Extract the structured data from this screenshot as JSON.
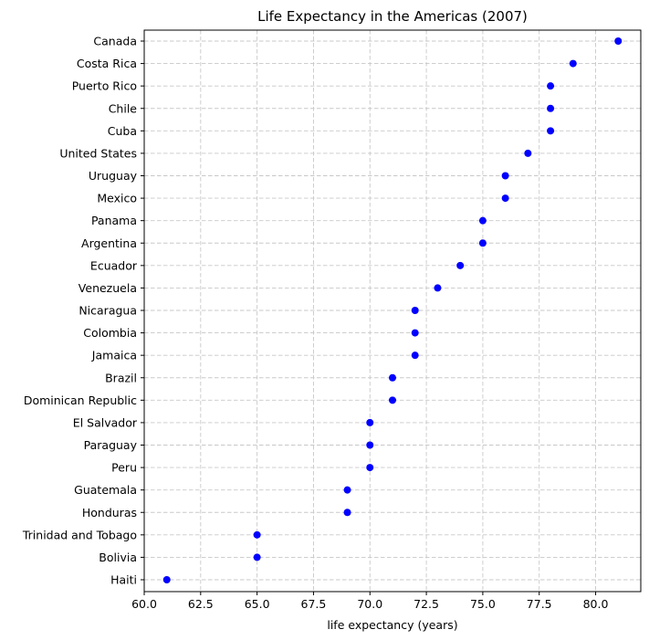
{
  "chart_data": {
    "type": "scatter",
    "title": "Life Expectancy in the Americas (2007)",
    "xlabel": "life expectancy (years)",
    "ylabel": "",
    "xlim": [
      60.0,
      82.0
    ],
    "xticks": [
      "60.0",
      "62.5",
      "65.0",
      "67.5",
      "70.0",
      "72.5",
      "75.0",
      "77.5",
      "80.0"
    ],
    "grid": true,
    "marker_color": "#0000ff",
    "categories": [
      "Canada",
      "Costa Rica",
      "Puerto Rico",
      "Chile",
      "Cuba",
      "United States",
      "Uruguay",
      "Mexico",
      "Panama",
      "Argentina",
      "Ecuador",
      "Venezuela",
      "Nicaragua",
      "Colombia",
      "Jamaica",
      "Brazil",
      "Dominican Republic",
      "El Salvador",
      "Paraguay",
      "Peru",
      "Guatemala",
      "Honduras",
      "Trinidad and Tobago",
      "Bolivia",
      "Haiti"
    ],
    "values": [
      81,
      79,
      78,
      78,
      78,
      77,
      76,
      76,
      75,
      75,
      74,
      73,
      72,
      72,
      72,
      71,
      71,
      70,
      70,
      70,
      69,
      69,
      65,
      65,
      61
    ]
  }
}
